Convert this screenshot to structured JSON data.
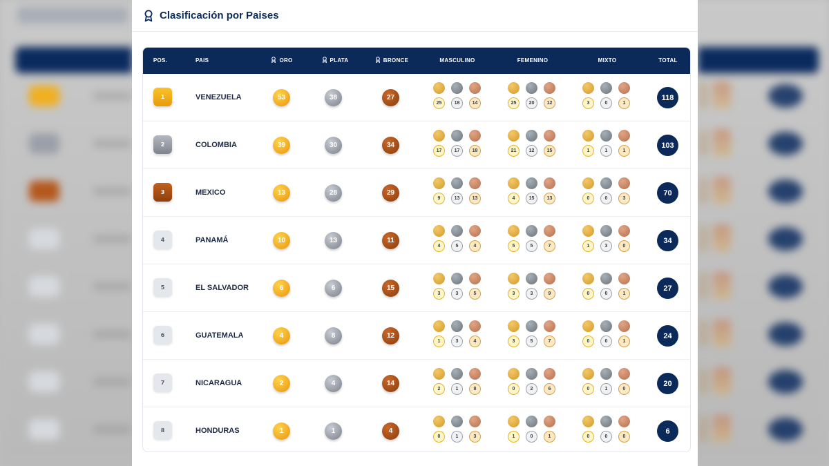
{
  "page": {
    "title": "Clasificación por Paises"
  },
  "headers": {
    "pos": "POS.",
    "pais": "PAIS",
    "oro": "ORO",
    "plata": "PLATA",
    "bronce": "BRONCE",
    "masculino": "MASCULINO",
    "femenino": "FEMENINO",
    "mixto": "MIXTO",
    "total": "TOTAL"
  },
  "colors": {
    "navy": "#0b2a5a",
    "gold": "#f0a914",
    "silver": "#8a8f99",
    "bronze": "#a4491a"
  },
  "icons": {
    "title": "award-ribbon-icon",
    "medal_header": "medal-icon"
  },
  "rows": [
    {
      "pos": "1",
      "pais": "VENEZUELA",
      "oro": "53",
      "plata": "38",
      "bronce": "27",
      "masculino": [
        "25",
        "18",
        "14"
      ],
      "femenino": [
        "25",
        "20",
        "12"
      ],
      "mixto": [
        "3",
        "0",
        "1"
      ],
      "total": "118"
    },
    {
      "pos": "2",
      "pais": "COLOMBIA",
      "oro": "39",
      "plata": "30",
      "bronce": "34",
      "masculino": [
        "17",
        "17",
        "18"
      ],
      "femenino": [
        "21",
        "12",
        "15"
      ],
      "mixto": [
        "1",
        "1",
        "1"
      ],
      "total": "103"
    },
    {
      "pos": "3",
      "pais": "MEXICO",
      "oro": "13",
      "plata": "28",
      "bronce": "29",
      "masculino": [
        "9",
        "13",
        "13"
      ],
      "femenino": [
        "4",
        "15",
        "13"
      ],
      "mixto": [
        "0",
        "0",
        "3"
      ],
      "total": "70"
    },
    {
      "pos": "4",
      "pais": "PANAMÁ",
      "oro": "10",
      "plata": "13",
      "bronce": "11",
      "masculino": [
        "4",
        "5",
        "4"
      ],
      "femenino": [
        "5",
        "5",
        "7"
      ],
      "mixto": [
        "1",
        "3",
        "0"
      ],
      "total": "34"
    },
    {
      "pos": "5",
      "pais": "EL SALVADOR",
      "oro": "6",
      "plata": "6",
      "bronce": "15",
      "masculino": [
        "3",
        "3",
        "5"
      ],
      "femenino": [
        "3",
        "3",
        "9"
      ],
      "mixto": [
        "0",
        "0",
        "1"
      ],
      "total": "27"
    },
    {
      "pos": "6",
      "pais": "GUATEMALA",
      "oro": "4",
      "plata": "8",
      "bronce": "12",
      "masculino": [
        "1",
        "3",
        "4"
      ],
      "femenino": [
        "3",
        "5",
        "7"
      ],
      "mixto": [
        "0",
        "0",
        "1"
      ],
      "total": "24"
    },
    {
      "pos": "7",
      "pais": "NICARAGUA",
      "oro": "2",
      "plata": "4",
      "bronce": "14",
      "masculino": [
        "2",
        "1",
        "8"
      ],
      "femenino": [
        "0",
        "2",
        "6"
      ],
      "mixto": [
        "0",
        "1",
        "0"
      ],
      "total": "20"
    },
    {
      "pos": "8",
      "pais": "HONDURAS",
      "oro": "1",
      "plata": "1",
      "bronce": "4",
      "masculino": [
        "0",
        "1",
        "3"
      ],
      "femenino": [
        "1",
        "0",
        "1"
      ],
      "mixto": [
        "0",
        "0",
        "0"
      ],
      "total": "6"
    }
  ]
}
